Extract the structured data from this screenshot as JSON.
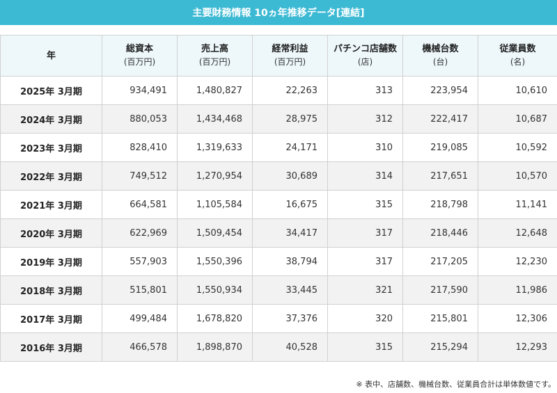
{
  "title": "主要財務情報 10ヵ年推移データ[連結]",
  "columns": [
    {
      "label": "年",
      "unit": ""
    },
    {
      "label": "総資本",
      "unit": "(百万円)"
    },
    {
      "label": "売上高",
      "unit": "(百万円)"
    },
    {
      "label": "経常利益",
      "unit": "(百万円)"
    },
    {
      "label": "パチンコ店舗数",
      "unit": "(店)"
    },
    {
      "label": "機械台数",
      "unit": "(台)"
    },
    {
      "label": "従業員数",
      "unit": "(名)"
    }
  ],
  "rows": [
    [
      "2025年 3月期",
      "934,491",
      "1,480,827",
      "22,263",
      "313",
      "223,954",
      "10,610"
    ],
    [
      "2024年 3月期",
      "880,053",
      "1,434,468",
      "28,975",
      "312",
      "222,417",
      "10,687"
    ],
    [
      "2023年 3月期",
      "828,410",
      "1,319,633",
      "24,171",
      "310",
      "219,085",
      "10,592"
    ],
    [
      "2022年 3月期",
      "749,512",
      "1,270,954",
      "30,689",
      "314",
      "217,651",
      "10,570"
    ],
    [
      "2021年 3月期",
      "664,581",
      "1,105,584",
      "16,675",
      "315",
      "218,798",
      "11,141"
    ],
    [
      "2020年 3月期",
      "622,969",
      "1,509,454",
      "34,417",
      "317",
      "218,446",
      "12,648"
    ],
    [
      "2019年 3月期",
      "557,903",
      "1,550,396",
      "38,794",
      "317",
      "217,205",
      "12,230"
    ],
    [
      "2018年 3月期",
      "515,801",
      "1,550,934",
      "33,445",
      "321",
      "217,590",
      "11,986"
    ],
    [
      "2017年 3月期",
      "499,484",
      "1,678,820",
      "37,376",
      "320",
      "215,801",
      "12,306"
    ],
    [
      "2016年 3月期",
      "466,578",
      "1,898,870",
      "40,528",
      "315",
      "215,294",
      "12,293"
    ]
  ],
  "footnote": "※ 表中、店舗数、機械台数、従業員合計は単体数値です。",
  "colors": {
    "banner": "#3cb9d3",
    "header_bg": "#eef8fb",
    "alt_row_bg": "#f2f2f2",
    "border": "#d0d0d0"
  }
}
